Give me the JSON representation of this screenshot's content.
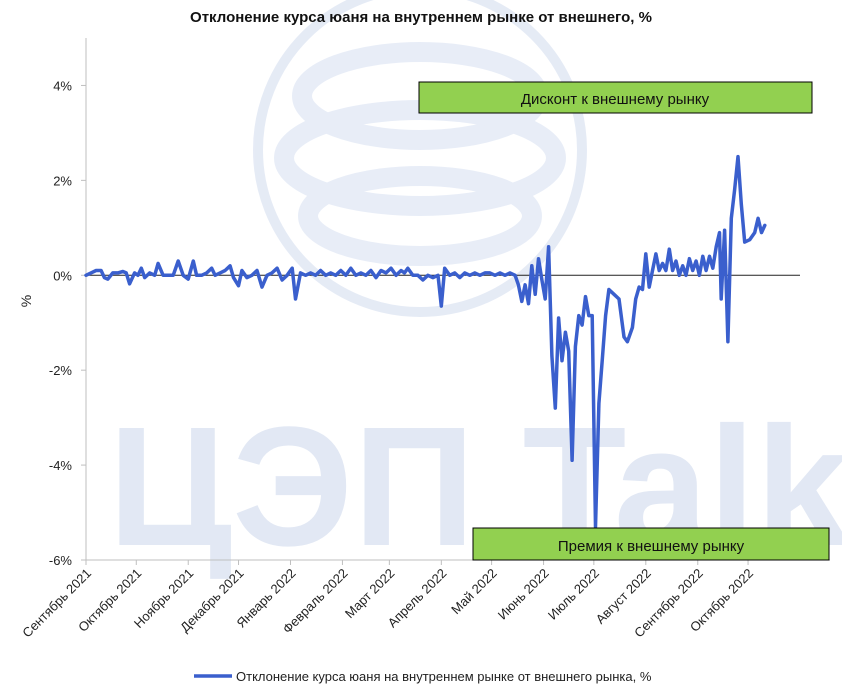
{
  "chart_data": {
    "type": "line",
    "title": "Отклонение курса юаня на внутреннем рынке от внешнего, %",
    "ylabel": "%",
    "ylim": [
      -6,
      5
    ],
    "yticks": [
      {
        "value": 4,
        "label": "4%"
      },
      {
        "value": 2,
        "label": "2%"
      },
      {
        "value": 0,
        "label": "0%"
      },
      {
        "value": -2,
        "label": "-2%"
      },
      {
        "value": -4,
        "label": "-4%"
      },
      {
        "value": -6,
        "label": "-6%"
      }
    ],
    "xlim": [
      "2021-09-01",
      "2022-11-01"
    ],
    "month_labels": [
      {
        "date": "2021-09-01",
        "label": "Сентябрь 2021"
      },
      {
        "date": "2021-10-01",
        "label": "Октябрь 2021"
      },
      {
        "date": "2021-11-01",
        "label": "Ноябрь 2021"
      },
      {
        "date": "2021-12-01",
        "label": "Декабрь 2021"
      },
      {
        "date": "2022-01-01",
        "label": "Январь 2022"
      },
      {
        "date": "2022-02-01",
        "label": "Февраль 2022"
      },
      {
        "date": "2022-03-01",
        "label": "Март 2022"
      },
      {
        "date": "2022-04-01",
        "label": "Апрель 2022"
      },
      {
        "date": "2022-05-01",
        "label": "Май 2022"
      },
      {
        "date": "2022-06-01",
        "label": "Июнь 2022"
      },
      {
        "date": "2022-07-01",
        "label": "Июль 2022"
      },
      {
        "date": "2022-08-01",
        "label": "Август 2022"
      },
      {
        "date": "2022-09-01",
        "label": "Сентябрь 2022"
      },
      {
        "date": "2022-10-01",
        "label": "Октябрь 2022"
      }
    ],
    "annotations": {
      "top_box": "Дисконт к внешнему рынку",
      "bottom_box": "Премия к внешнему рынку"
    },
    "series": [
      {
        "name": "Отклонение курса юаня на внутреннем рынке от внешнего рынка, %",
        "color": "#3a5fcd",
        "points": [
          [
            "2021-09-01",
            0.0
          ],
          [
            "2021-09-04",
            0.05
          ],
          [
            "2021-09-07",
            0.1
          ],
          [
            "2021-09-10",
            0.1
          ],
          [
            "2021-09-12",
            -0.05
          ],
          [
            "2021-09-14",
            -0.08
          ],
          [
            "2021-09-17",
            0.05
          ],
          [
            "2021-09-20",
            0.05
          ],
          [
            "2021-09-23",
            0.08
          ],
          [
            "2021-09-25",
            0.05
          ],
          [
            "2021-09-27",
            -0.18
          ],
          [
            "2021-09-30",
            0.05
          ],
          [
            "2021-10-02",
            0.0
          ],
          [
            "2021-10-04",
            0.15
          ],
          [
            "2021-10-06",
            -0.05
          ],
          [
            "2021-10-09",
            0.05
          ],
          [
            "2021-10-12",
            0.0
          ],
          [
            "2021-10-14",
            0.25
          ],
          [
            "2021-10-17",
            0.0
          ],
          [
            "2021-10-20",
            0.0
          ],
          [
            "2021-10-23",
            0.0
          ],
          [
            "2021-10-26",
            0.3
          ],
          [
            "2021-10-29",
            0.0
          ],
          [
            "2021-11-01",
            -0.08
          ],
          [
            "2021-11-04",
            0.3
          ],
          [
            "2021-11-06",
            0.0
          ],
          [
            "2021-11-09",
            0.0
          ],
          [
            "2021-11-12",
            0.05
          ],
          [
            "2021-11-15",
            0.15
          ],
          [
            "2021-11-17",
            0.0
          ],
          [
            "2021-11-20",
            0.05
          ],
          [
            "2021-11-23",
            0.1
          ],
          [
            "2021-11-26",
            0.2
          ],
          [
            "2021-11-28",
            -0.05
          ],
          [
            "2021-12-01",
            -0.22
          ],
          [
            "2021-12-03",
            0.1
          ],
          [
            "2021-12-06",
            -0.05
          ],
          [
            "2021-12-09",
            0.0
          ],
          [
            "2021-12-12",
            0.1
          ],
          [
            "2021-12-15",
            -0.25
          ],
          [
            "2021-12-18",
            0.0
          ],
          [
            "2021-12-21",
            0.05
          ],
          [
            "2021-12-24",
            0.15
          ],
          [
            "2021-12-27",
            -0.1
          ],
          [
            "2021-12-30",
            0.0
          ],
          [
            "2022-01-02",
            0.15
          ],
          [
            "2022-01-04",
            -0.5
          ],
          [
            "2022-01-07",
            0.05
          ],
          [
            "2022-01-10",
            0.0
          ],
          [
            "2022-01-13",
            0.05
          ],
          [
            "2022-01-16",
            0.0
          ],
          [
            "2022-01-19",
            0.1
          ],
          [
            "2022-01-22",
            0.0
          ],
          [
            "2022-01-25",
            0.05
          ],
          [
            "2022-01-28",
            0.0
          ],
          [
            "2022-01-31",
            0.1
          ],
          [
            "2022-02-03",
            0.0
          ],
          [
            "2022-02-06",
            0.15
          ],
          [
            "2022-02-09",
            0.0
          ],
          [
            "2022-02-12",
            0.05
          ],
          [
            "2022-02-15",
            0.0
          ],
          [
            "2022-02-18",
            0.1
          ],
          [
            "2022-02-21",
            -0.05
          ],
          [
            "2022-02-24",
            0.1
          ],
          [
            "2022-02-27",
            0.05
          ],
          [
            "2022-03-02",
            0.15
          ],
          [
            "2022-03-05",
            0.0
          ],
          [
            "2022-03-08",
            0.1
          ],
          [
            "2022-03-10",
            0.05
          ],
          [
            "2022-03-12",
            0.15
          ],
          [
            "2022-03-15",
            0.0
          ],
          [
            "2022-03-18",
            0.0
          ],
          [
            "2022-03-21",
            -0.1
          ],
          [
            "2022-03-24",
            0.0
          ],
          [
            "2022-03-27",
            -0.05
          ],
          [
            "2022-03-30",
            0.0
          ],
          [
            "2022-04-01",
            -0.65
          ],
          [
            "2022-04-03",
            0.15
          ],
          [
            "2022-04-06",
            0.0
          ],
          [
            "2022-04-09",
            0.05
          ],
          [
            "2022-04-12",
            -0.05
          ],
          [
            "2022-04-15",
            0.05
          ],
          [
            "2022-04-18",
            0.0
          ],
          [
            "2022-04-21",
            0.05
          ],
          [
            "2022-04-24",
            0.0
          ],
          [
            "2022-04-27",
            0.05
          ],
          [
            "2022-04-30",
            0.05
          ],
          [
            "2022-05-03",
            0.0
          ],
          [
            "2022-05-06",
            0.05
          ],
          [
            "2022-05-09",
            0.0
          ],
          [
            "2022-05-12",
            0.05
          ],
          [
            "2022-05-15",
            0.0
          ],
          [
            "2022-05-17",
            -0.2
          ],
          [
            "2022-05-19",
            -0.55
          ],
          [
            "2022-05-21",
            -0.2
          ],
          [
            "2022-05-23",
            -0.6
          ],
          [
            "2022-05-25",
            0.2
          ],
          [
            "2022-05-27",
            -0.4
          ],
          [
            "2022-05-29",
            0.35
          ],
          [
            "2022-05-31",
            -0.1
          ],
          [
            "2022-06-02",
            -0.5
          ],
          [
            "2022-06-04",
            0.6
          ],
          [
            "2022-06-06",
            -1.7
          ],
          [
            "2022-06-08",
            -2.8
          ],
          [
            "2022-06-10",
            -0.9
          ],
          [
            "2022-06-12",
            -1.8
          ],
          [
            "2022-06-14",
            -1.2
          ],
          [
            "2022-06-16",
            -1.6
          ],
          [
            "2022-06-18",
            -3.9
          ],
          [
            "2022-06-20",
            -1.5
          ],
          [
            "2022-06-22",
            -0.85
          ],
          [
            "2022-06-24",
            -1.05
          ],
          [
            "2022-06-26",
            -0.45
          ],
          [
            "2022-06-28",
            -0.85
          ],
          [
            "2022-06-30",
            -0.85
          ],
          [
            "2022-07-02",
            -5.3
          ],
          [
            "2022-07-04",
            -2.7
          ],
          [
            "2022-07-06",
            -1.8
          ],
          [
            "2022-07-08",
            -0.85
          ],
          [
            "2022-07-10",
            -0.3
          ],
          [
            "2022-07-13",
            -0.4
          ],
          [
            "2022-07-16",
            -0.5
          ],
          [
            "2022-07-19",
            -1.3
          ],
          [
            "2022-07-21",
            -1.4
          ],
          [
            "2022-07-24",
            -1.1
          ],
          [
            "2022-07-26",
            -0.5
          ],
          [
            "2022-07-28",
            -0.25
          ],
          [
            "2022-07-30",
            -0.3
          ],
          [
            "2022-08-01",
            0.45
          ],
          [
            "2022-08-03",
            -0.25
          ],
          [
            "2022-08-05",
            0.1
          ],
          [
            "2022-08-07",
            0.45
          ],
          [
            "2022-08-09",
            0.1
          ],
          [
            "2022-08-11",
            0.25
          ],
          [
            "2022-08-13",
            0.1
          ],
          [
            "2022-08-15",
            0.55
          ],
          [
            "2022-08-17",
            0.1
          ],
          [
            "2022-08-19",
            0.3
          ],
          [
            "2022-08-21",
            0.0
          ],
          [
            "2022-08-23",
            0.2
          ],
          [
            "2022-08-25",
            0.0
          ],
          [
            "2022-08-27",
            0.35
          ],
          [
            "2022-08-29",
            0.1
          ],
          [
            "2022-08-31",
            0.3
          ],
          [
            "2022-09-02",
            0.0
          ],
          [
            "2022-09-04",
            0.4
          ],
          [
            "2022-09-06",
            0.1
          ],
          [
            "2022-09-08",
            0.4
          ],
          [
            "2022-09-10",
            0.15
          ],
          [
            "2022-09-12",
            0.6
          ],
          [
            "2022-09-14",
            0.9
          ],
          [
            "2022-09-15",
            -0.5
          ],
          [
            "2022-09-17",
            0.95
          ],
          [
            "2022-09-19",
            -1.4
          ],
          [
            "2022-09-21",
            1.2
          ],
          [
            "2022-09-23",
            1.8
          ],
          [
            "2022-09-25",
            2.5
          ],
          [
            "2022-09-27",
            1.5
          ],
          [
            "2022-09-29",
            0.7
          ],
          [
            "2022-10-02",
            0.75
          ],
          [
            "2022-10-05",
            0.9
          ],
          [
            "2022-10-07",
            1.2
          ],
          [
            "2022-10-09",
            0.9
          ],
          [
            "2022-10-11",
            1.05
          ]
        ]
      }
    ]
  }
}
